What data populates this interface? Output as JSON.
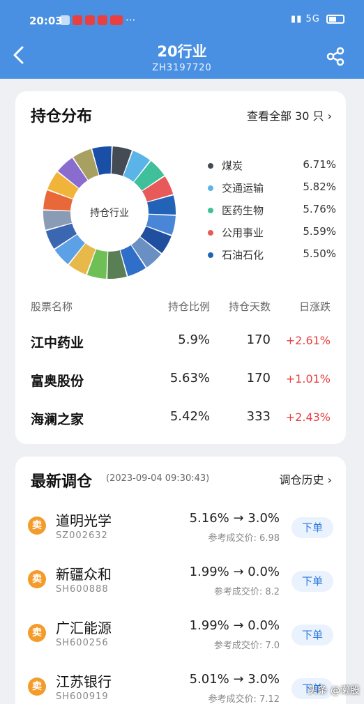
{
  "status": {
    "time": "20:03",
    "signal": "5G"
  },
  "header": {
    "title": "20行业",
    "subtitle": "ZH3197720"
  },
  "holdings": {
    "title": "持仓分布",
    "view_all": "查看全部 30 只 ›",
    "donut_center": "持仓行业",
    "legend": [
      {
        "name": "煤炭",
        "pct": "6.71%",
        "color": "#444b55"
      },
      {
        "name": "交通运输",
        "pct": "5.82%",
        "color": "#5ab4e8"
      },
      {
        "name": "医药生物",
        "pct": "5.76%",
        "color": "#3fbf9a"
      },
      {
        "name": "公用事业",
        "pct": "5.59%",
        "color": "#e85a5a"
      },
      {
        "name": "石油石化",
        "pct": "5.50%",
        "color": "#2263b8"
      }
    ],
    "columns": [
      "股票名称",
      "持仓比例",
      "持仓天数",
      "日涨跌"
    ],
    "rows": [
      {
        "name": "江中药业",
        "ratio": "5.9%",
        "days": "170",
        "change": "+2.61%"
      },
      {
        "name": "富奥股份",
        "ratio": "5.63%",
        "days": "170",
        "change": "+1.01%"
      },
      {
        "name": "海澜之家",
        "ratio": "5.42%",
        "days": "333",
        "change": "+2.43%"
      }
    ]
  },
  "rebalance": {
    "title": "最新调仓",
    "time": "(2023-09-04 09:30:43)",
    "history": "调仓历史 ›",
    "trades": [
      {
        "name": "道明光学",
        "code": "SZ002632",
        "change": "5.16% → 3.0%",
        "ref": "参考成交价: 6.98",
        "action": "卖",
        "button": "下单"
      },
      {
        "name": "新疆众和",
        "code": "SH600888",
        "change": "1.99% → 0.0%",
        "ref": "参考成交价: 8.2",
        "action": "卖",
        "button": "下单"
      },
      {
        "name": "广汇能源",
        "code": "SH600256",
        "change": "1.99% → 0.0%",
        "ref": "参考成交价: 7.0",
        "action": "卖",
        "button": "下单"
      },
      {
        "name": "江苏银行",
        "code": "SH600919",
        "change": "5.01% → 3.0%",
        "ref": "参考成交价: 7.12",
        "action": "卖",
        "button": "下单"
      }
    ]
  },
  "watermark": "头条 @濑股",
  "donut_colors": [
    "#444b55",
    "#5ab4e8",
    "#3fbf9a",
    "#e85a5a",
    "#2263b8",
    "#4a86d8",
    "#1f4f9e",
    "#6a8fc2",
    "#2f6fca",
    "#5b7f55",
    "#6fbf57",
    "#e6b94a",
    "#5ca0e6",
    "#3a66b2",
    "#8a9bb5",
    "#e8683a",
    "#f0b43a",
    "#8a6ccf",
    "#a8a060",
    "#1a4fa8"
  ]
}
